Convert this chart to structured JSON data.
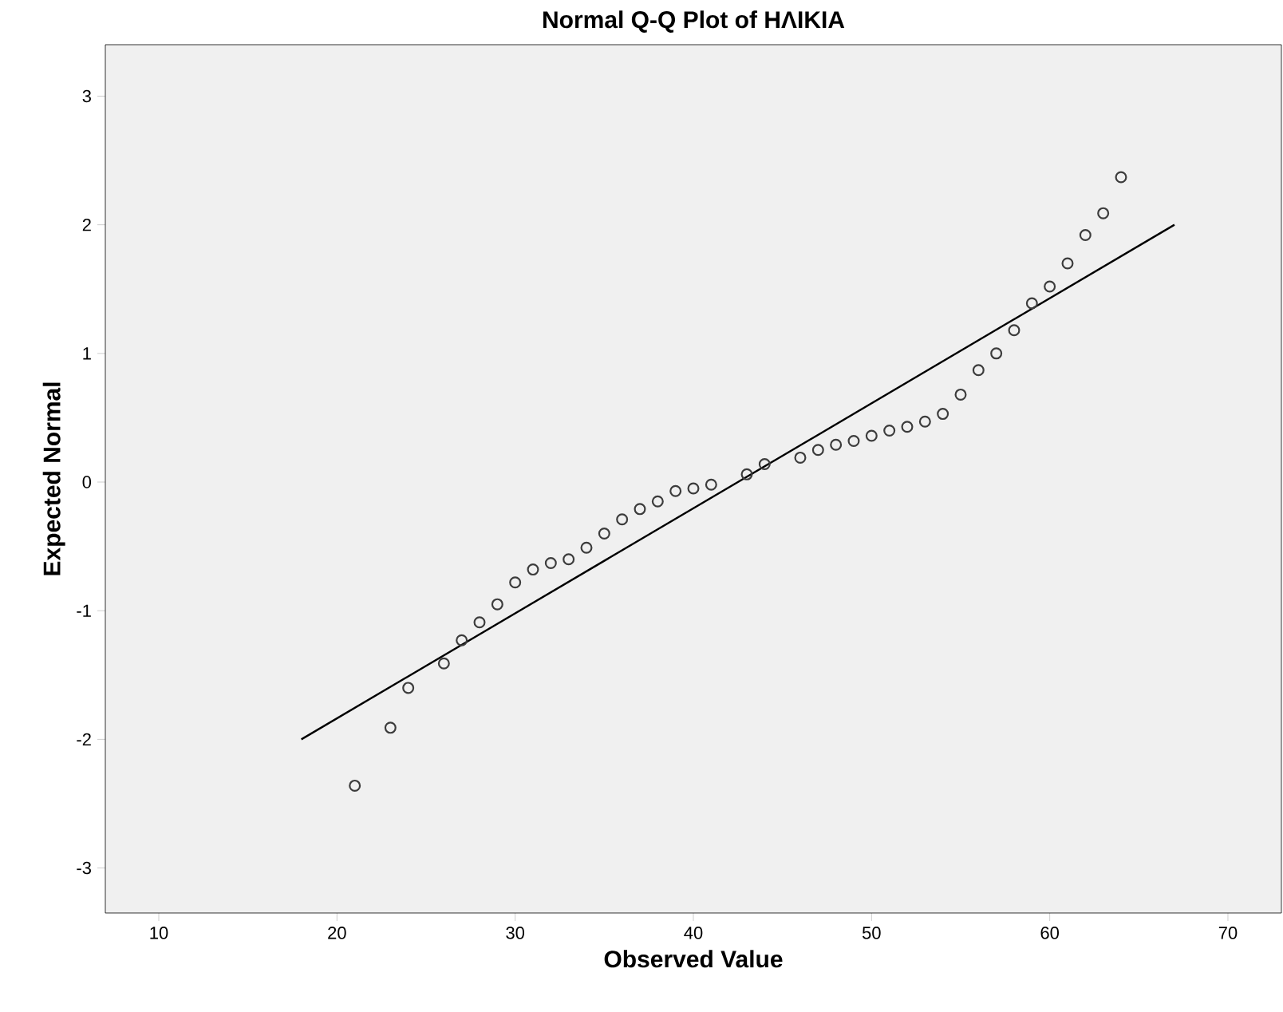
{
  "chart_data": {
    "type": "scatter",
    "title": "Normal Q-Q Plot of ΗΛΙΚΙΑ",
    "xlabel": "Observed Value",
    "ylabel": "Expected Normal",
    "xlim": [
      7,
      73
    ],
    "ylim": [
      -3.35,
      3.4
    ],
    "xticks": [
      10,
      20,
      30,
      40,
      50,
      60,
      70
    ],
    "yticks": [
      -3,
      -2,
      -1,
      0,
      1,
      2,
      3
    ],
    "series": [
      {
        "marker": "circle",
        "color": "#3c3c3c",
        "x": [
          21,
          23,
          24,
          26,
          27,
          28,
          29,
          30,
          31,
          32,
          33,
          34,
          35,
          36,
          37,
          38,
          39,
          40,
          41,
          43,
          44,
          46,
          47,
          48,
          49,
          50,
          51,
          52,
          53,
          54,
          55,
          56,
          57,
          58,
          59,
          60,
          61,
          62,
          63,
          64
        ],
        "values": [
          -2.36,
          -1.91,
          -1.6,
          -1.41,
          -1.23,
          -1.09,
          -0.95,
          -0.78,
          -0.68,
          -0.63,
          -0.6,
          -0.51,
          -0.4,
          -0.29,
          -0.21,
          -0.15,
          -0.07,
          -0.05,
          -0.02,
          0.06,
          0.14,
          0.19,
          0.25,
          0.29,
          0.32,
          0.36,
          0.4,
          0.43,
          0.47,
          0.53,
          0.68,
          0.87,
          1.0,
          1.18,
          1.39,
          1.52,
          1.7,
          1.92,
          2.09,
          2.37
        ]
      },
      {
        "type": "line",
        "marker": "none",
        "color": "#000000",
        "x": [
          18,
          67
        ],
        "values": [
          -2,
          2
        ]
      }
    ]
  }
}
